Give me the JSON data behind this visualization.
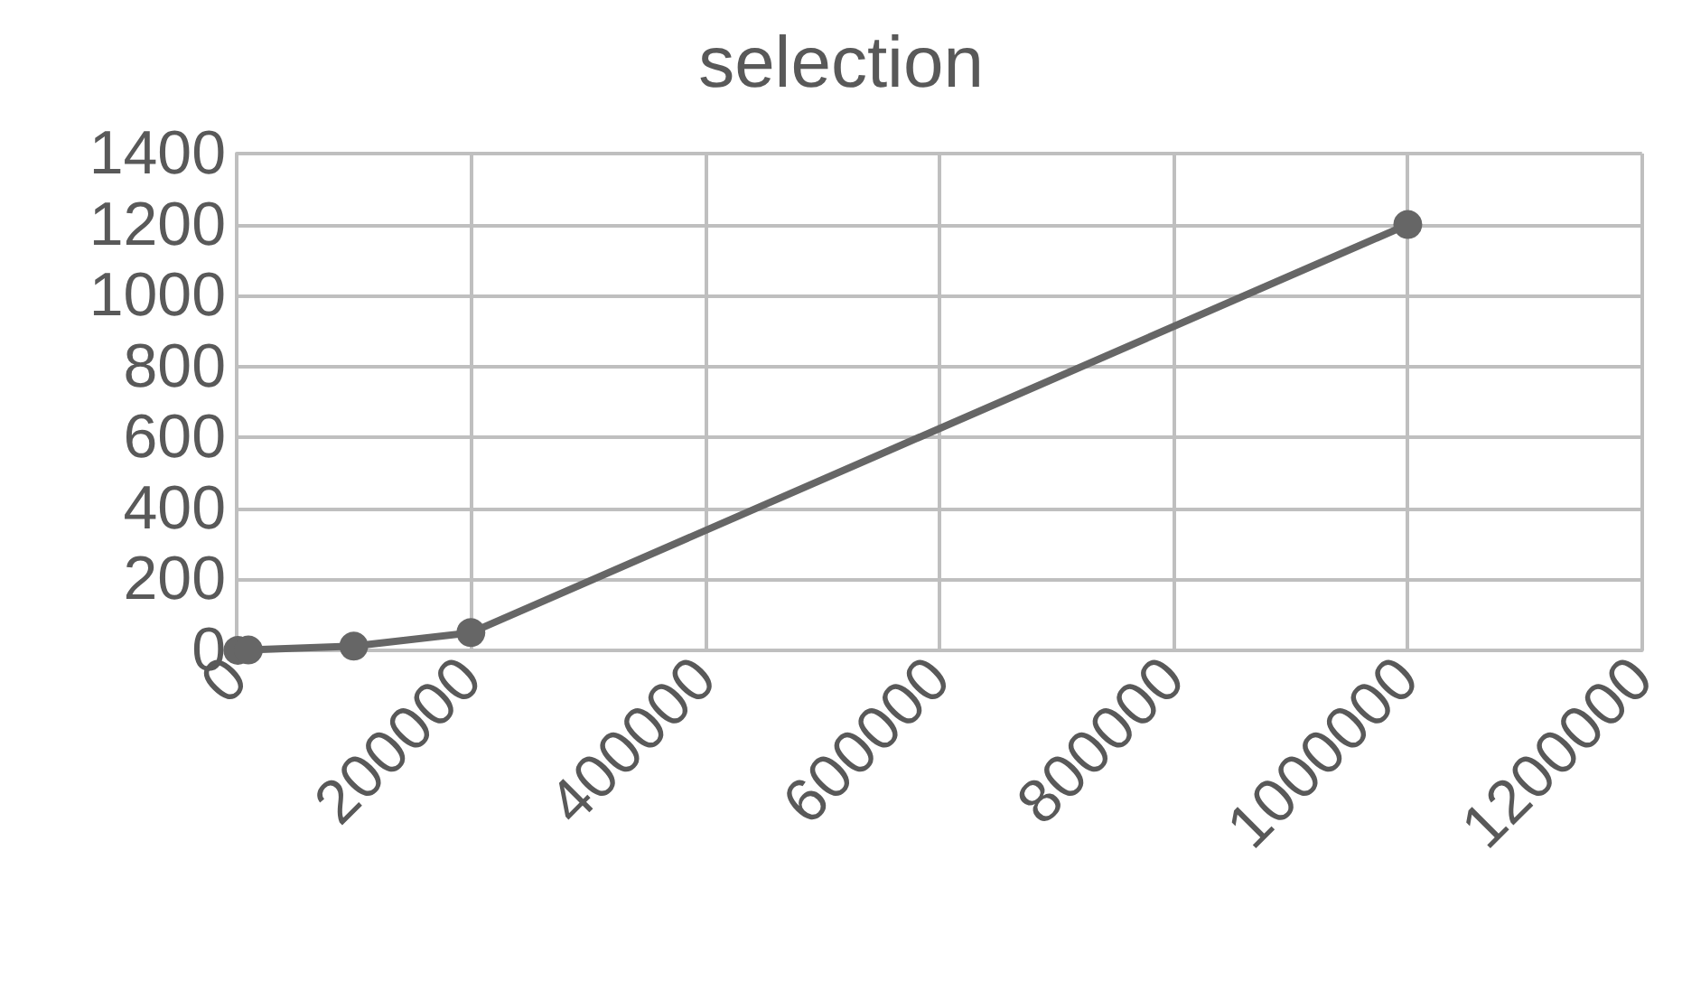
{
  "chart_data": {
    "type": "line",
    "title": "selection",
    "x": [
      1000,
      10000,
      100000,
      200000,
      1000000
    ],
    "series": [
      {
        "color": "#666666",
        "values": [
          0,
          1,
          12,
          50,
          1200
        ]
      }
    ],
    "xlim": [
      0,
      1200000
    ],
    "xticks": [
      0,
      200000,
      400000,
      600000,
      800000,
      1000000,
      1200000
    ],
    "ylim": [
      0,
      1400
    ],
    "yticks": [
      0,
      200,
      400,
      600,
      800,
      1000,
      1200,
      1400
    ],
    "grid": true,
    "marker": "circle",
    "line_style": "solid"
  }
}
